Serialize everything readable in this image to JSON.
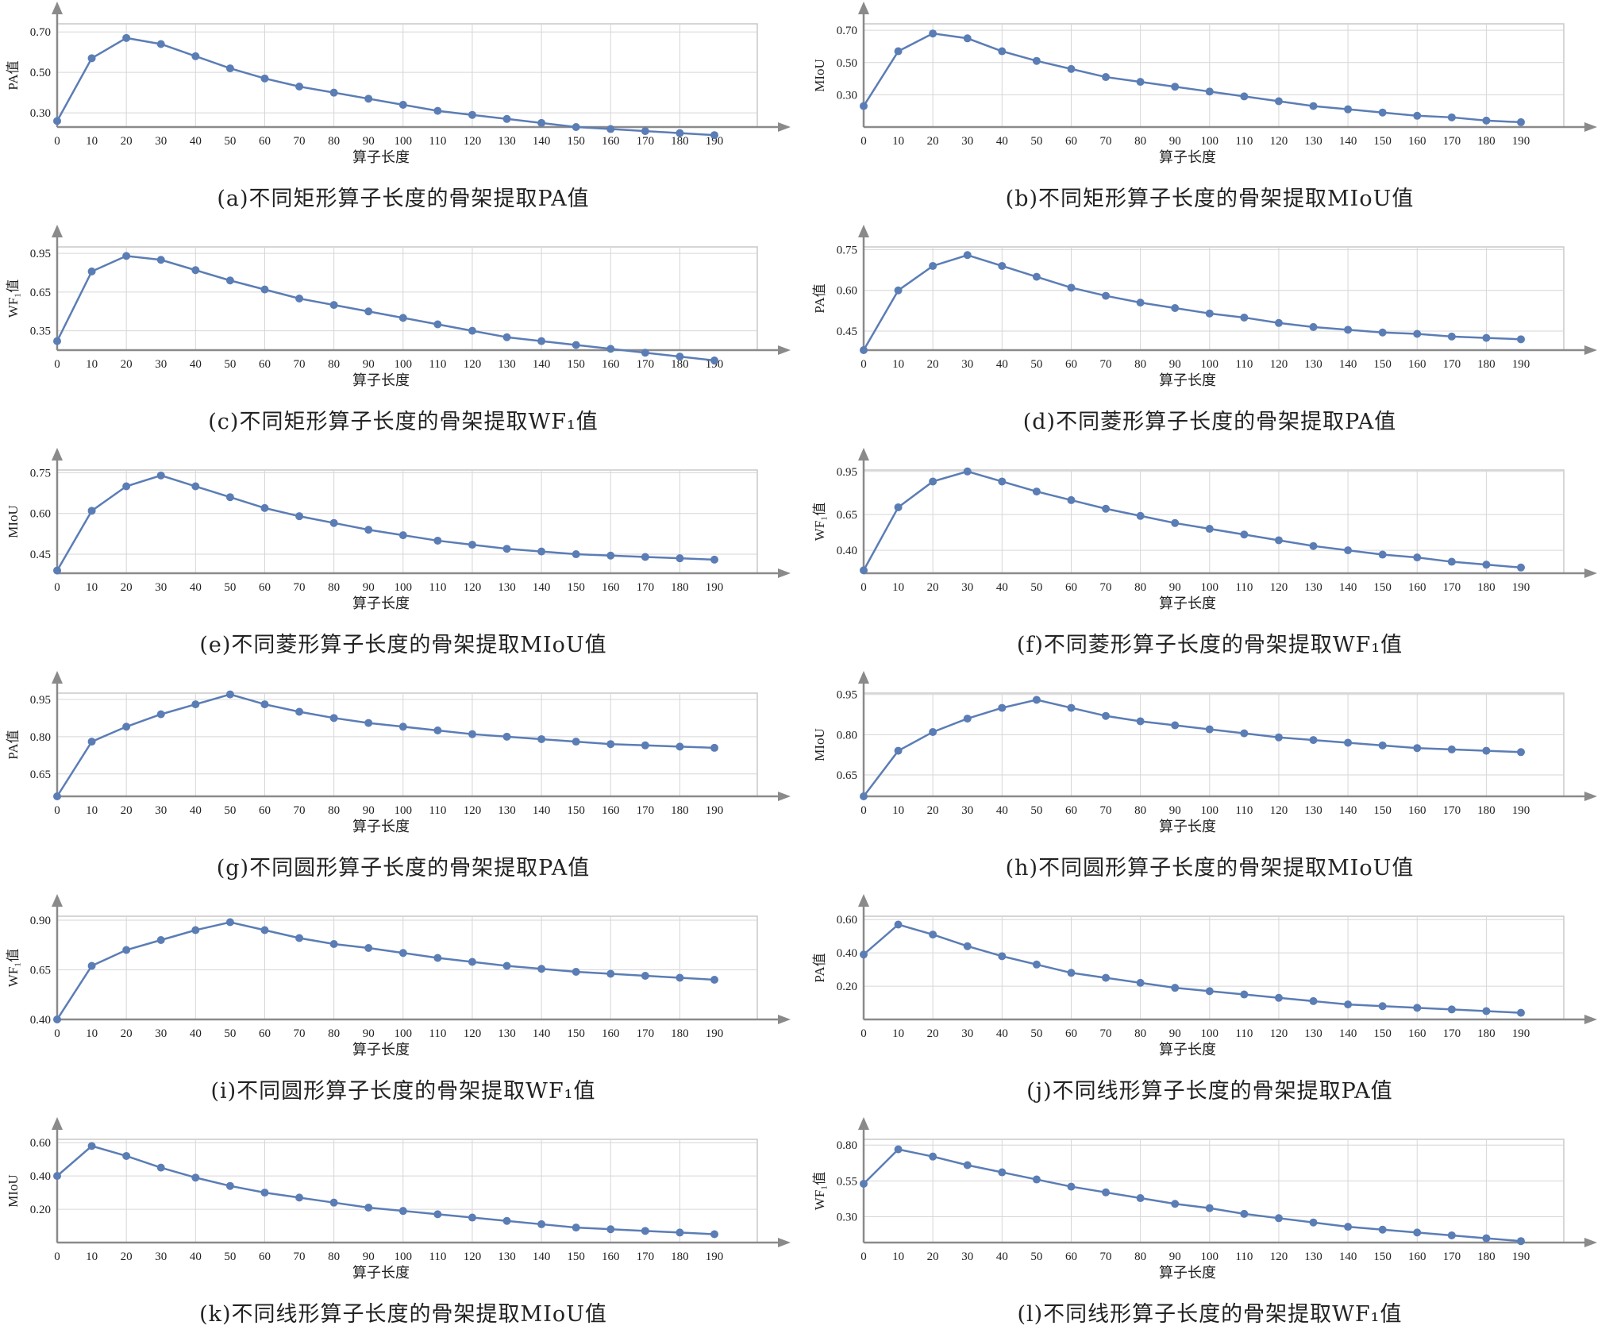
{
  "colors": {
    "line": "#5b7db5",
    "grid": "#d6d6d6",
    "frame": "#c8c8c8",
    "axis": "#8a8a8a"
  },
  "x_ticks": [
    0,
    10,
    20,
    30,
    40,
    50,
    60,
    70,
    80,
    90,
    100,
    110,
    120,
    130,
    140,
    150,
    160,
    170,
    180,
    190
  ],
  "chart_data": [
    {
      "type": "line",
      "caption": "(a)不同矩形算子长度的骨架提取PA值",
      "ylabel": "PA值",
      "xlabel": "算子长度",
      "yticks": [
        "0.30",
        "0.50",
        "0.70"
      ],
      "ylim": [
        0.23,
        0.74
      ],
      "x": [
        0,
        10,
        20,
        30,
        40,
        50,
        60,
        70,
        80,
        90,
        100,
        110,
        120,
        130,
        140,
        150,
        160,
        170,
        180,
        190
      ],
      "values": [
        0.26,
        0.57,
        0.67,
        0.64,
        0.58,
        0.52,
        0.47,
        0.43,
        0.4,
        0.37,
        0.34,
        0.31,
        0.29,
        0.27,
        0.25,
        0.23,
        0.22,
        0.21,
        0.2,
        0.19
      ]
    },
    {
      "type": "line",
      "caption": "(b)不同矩形算子长度的骨架提取MIoU值",
      "ylabel": "MIoU",
      "xlabel": "算子长度",
      "yticks": [
        "0.30",
        "0.50",
        "0.70"
      ],
      "ylim": [
        0.1,
        0.74
      ],
      "x": [
        0,
        10,
        20,
        30,
        40,
        50,
        60,
        70,
        80,
        90,
        100,
        110,
        120,
        130,
        140,
        150,
        160,
        170,
        180,
        190
      ],
      "values": [
        0.23,
        0.57,
        0.68,
        0.65,
        0.57,
        0.51,
        0.46,
        0.41,
        0.38,
        0.35,
        0.32,
        0.29,
        0.26,
        0.23,
        0.21,
        0.19,
        0.17,
        0.16,
        0.14,
        0.13
      ]
    },
    {
      "type": "line",
      "caption": "(c)不同矩形算子长度的骨架提取WF₁值",
      "ylabel": "WF₁值",
      "xlabel": "算子长度",
      "yticks": [
        "0.35",
        "0.65",
        "0.95"
      ],
      "ylim": [
        0.2,
        1.0
      ],
      "x": [
        0,
        10,
        20,
        30,
        40,
        50,
        60,
        70,
        80,
        90,
        100,
        110,
        120,
        130,
        140,
        150,
        160,
        170,
        180,
        190
      ],
      "values": [
        0.27,
        0.81,
        0.93,
        0.9,
        0.82,
        0.74,
        0.67,
        0.6,
        0.55,
        0.5,
        0.45,
        0.4,
        0.35,
        0.3,
        0.27,
        0.24,
        0.21,
        0.18,
        0.15,
        0.12
      ]
    },
    {
      "type": "line",
      "caption": "(d)不同菱形算子长度的骨架提取PA值",
      "ylabel": "PA值",
      "xlabel": "算子长度",
      "yticks": [
        "0.45",
        "0.60",
        "0.75"
      ],
      "ylim": [
        0.38,
        0.76
      ],
      "x": [
        0,
        10,
        20,
        30,
        40,
        50,
        60,
        70,
        80,
        90,
        100,
        110,
        120,
        130,
        140,
        150,
        160,
        170,
        180,
        190
      ],
      "values": [
        0.38,
        0.6,
        0.69,
        0.73,
        0.69,
        0.65,
        0.61,
        0.58,
        0.555,
        0.535,
        0.515,
        0.5,
        0.48,
        0.465,
        0.455,
        0.445,
        0.44,
        0.43,
        0.425,
        0.42
      ]
    },
    {
      "type": "line",
      "caption": "(e)不同菱形算子长度的骨架提取MIoU值",
      "ylabel": "MIoU",
      "xlabel": "算子长度",
      "yticks": [
        "0.45",
        "0.60",
        "0.75"
      ],
      "ylim": [
        0.38,
        0.76
      ],
      "x": [
        0,
        10,
        20,
        30,
        40,
        50,
        60,
        70,
        80,
        90,
        100,
        110,
        120,
        130,
        140,
        150,
        160,
        170,
        180,
        190
      ],
      "values": [
        0.39,
        0.61,
        0.7,
        0.74,
        0.7,
        0.66,
        0.62,
        0.59,
        0.565,
        0.54,
        0.52,
        0.5,
        0.485,
        0.47,
        0.46,
        0.45,
        0.445,
        0.44,
        0.435,
        0.43
      ]
    },
    {
      "type": "line",
      "caption": "(f)不同菱形算子长度的骨架提取WF₁值",
      "ylabel": "WF₁值",
      "xlabel": "算子长度",
      "yticks": [
        "0.40",
        "0.65",
        "0.95"
      ],
      "ylim": [
        0.24,
        0.96
      ],
      "x": [
        0,
        10,
        20,
        30,
        40,
        50,
        60,
        70,
        80,
        90,
        100,
        110,
        120,
        130,
        140,
        150,
        160,
        170,
        180,
        190
      ],
      "values": [
        0.26,
        0.7,
        0.88,
        0.95,
        0.88,
        0.81,
        0.75,
        0.69,
        0.64,
        0.59,
        0.55,
        0.51,
        0.47,
        0.43,
        0.4,
        0.37,
        0.35,
        0.32,
        0.3,
        0.28
      ]
    },
    {
      "type": "line",
      "caption": "(g)不同圆形算子长度的骨架提取PA值",
      "ylabel": "PA值",
      "xlabel": "算子长度",
      "yticks": [
        "0.65",
        "0.80",
        "0.95"
      ],
      "ylim": [
        0.56,
        0.975
      ],
      "x": [
        0,
        10,
        20,
        30,
        40,
        50,
        60,
        70,
        80,
        90,
        100,
        110,
        120,
        130,
        140,
        150,
        160,
        170,
        180,
        190
      ],
      "values": [
        0.56,
        0.78,
        0.84,
        0.89,
        0.93,
        0.97,
        0.93,
        0.9,
        0.875,
        0.855,
        0.84,
        0.825,
        0.81,
        0.8,
        0.79,
        0.78,
        0.77,
        0.765,
        0.76,
        0.755
      ]
    },
    {
      "type": "line",
      "caption": "(h)不同圆形算子长度的骨架提取MIoU值",
      "ylabel": "MIoU",
      "xlabel": "算子长度",
      "yticks": [
        "0.65",
        "0.80",
        "0.95"
      ],
      "ylim": [
        0.57,
        0.955
      ],
      "x": [
        0,
        10,
        20,
        30,
        40,
        50,
        60,
        70,
        80,
        90,
        100,
        110,
        120,
        130,
        140,
        150,
        160,
        170,
        180,
        190
      ],
      "values": [
        0.57,
        0.74,
        0.81,
        0.86,
        0.9,
        0.93,
        0.9,
        0.87,
        0.85,
        0.835,
        0.82,
        0.805,
        0.79,
        0.78,
        0.77,
        0.76,
        0.75,
        0.745,
        0.74,
        0.735
      ]
    },
    {
      "type": "line",
      "caption": "(i)不同圆形算子长度的骨架提取WF₁值",
      "ylabel": "WF₁值",
      "xlabel": "算子长度",
      "yticks": [
        "0.40",
        "0.65",
        "0.90"
      ],
      "ylim": [
        0.4,
        0.92
      ],
      "x": [
        0,
        10,
        20,
        30,
        40,
        50,
        60,
        70,
        80,
        90,
        100,
        110,
        120,
        130,
        140,
        150,
        160,
        170,
        180,
        190
      ],
      "values": [
        0.4,
        0.67,
        0.75,
        0.8,
        0.85,
        0.89,
        0.85,
        0.81,
        0.78,
        0.76,
        0.735,
        0.71,
        0.69,
        0.67,
        0.655,
        0.64,
        0.63,
        0.62,
        0.61,
        0.6
      ]
    },
    {
      "type": "line",
      "caption": "(j)不同线形算子长度的骨架提取PA值",
      "ylabel": "PA值",
      "xlabel": "算子长度",
      "yticks": [
        "0.20",
        "0.40",
        "0.60"
      ],
      "ylim": [
        0.0,
        0.62
      ],
      "x": [
        0,
        10,
        20,
        30,
        40,
        50,
        60,
        70,
        80,
        90,
        100,
        110,
        120,
        130,
        140,
        150,
        160,
        170,
        180,
        190
      ],
      "values": [
        0.39,
        0.57,
        0.51,
        0.44,
        0.38,
        0.33,
        0.28,
        0.25,
        0.22,
        0.19,
        0.17,
        0.15,
        0.13,
        0.11,
        0.09,
        0.08,
        0.07,
        0.06,
        0.05,
        0.04
      ]
    },
    {
      "type": "line",
      "caption": "(k)不同线形算子长度的骨架提取MIoU值",
      "ylabel": "MIoU",
      "xlabel": "算子长度",
      "yticks": [
        "0.20",
        "0.40",
        "0.60"
      ],
      "ylim": [
        0.0,
        0.62
      ],
      "x": [
        0,
        10,
        20,
        30,
        40,
        50,
        60,
        70,
        80,
        90,
        100,
        110,
        120,
        130,
        140,
        150,
        160,
        170,
        180,
        190
      ],
      "values": [
        0.4,
        0.58,
        0.52,
        0.45,
        0.39,
        0.34,
        0.3,
        0.27,
        0.24,
        0.21,
        0.19,
        0.17,
        0.15,
        0.13,
        0.11,
        0.09,
        0.08,
        0.07,
        0.06,
        0.05
      ]
    },
    {
      "type": "line",
      "caption": "(l)不同线形算子长度的骨架提取WF₁值",
      "ylabel": "WF₁值",
      "xlabel": "算子长度",
      "yticks": [
        "0.30",
        "0.55",
        "0.80"
      ],
      "ylim": [
        0.12,
        0.84
      ],
      "x": [
        0,
        10,
        20,
        30,
        40,
        50,
        60,
        70,
        80,
        90,
        100,
        110,
        120,
        130,
        140,
        150,
        160,
        170,
        180,
        190
      ],
      "values": [
        0.53,
        0.77,
        0.72,
        0.66,
        0.61,
        0.56,
        0.51,
        0.47,
        0.43,
        0.39,
        0.36,
        0.32,
        0.29,
        0.26,
        0.23,
        0.21,
        0.19,
        0.17,
        0.15,
        0.13
      ]
    }
  ]
}
